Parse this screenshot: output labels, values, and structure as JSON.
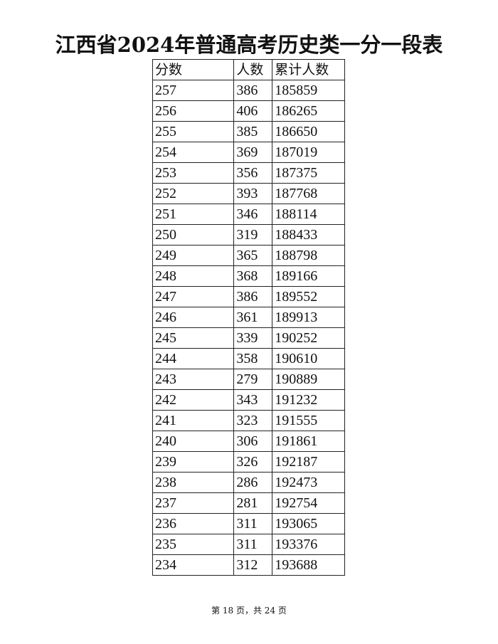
{
  "title": "江西省2024年普通高考历史类一分一段表",
  "table": {
    "headers": [
      "分数",
      "人数",
      "累计人数"
    ],
    "rows": [
      [
        "257",
        "386",
        "185859"
      ],
      [
        "256",
        "406",
        "186265"
      ],
      [
        "255",
        "385",
        "186650"
      ],
      [
        "254",
        "369",
        "187019"
      ],
      [
        "253",
        "356",
        "187375"
      ],
      [
        "252",
        "393",
        "187768"
      ],
      [
        "251",
        "346",
        "188114"
      ],
      [
        "250",
        "319",
        "188433"
      ],
      [
        "249",
        "365",
        "188798"
      ],
      [
        "248",
        "368",
        "189166"
      ],
      [
        "247",
        "386",
        "189552"
      ],
      [
        "246",
        "361",
        "189913"
      ],
      [
        "245",
        "339",
        "190252"
      ],
      [
        "244",
        "358",
        "190610"
      ],
      [
        "243",
        "279",
        "190889"
      ],
      [
        "242",
        "343",
        "191232"
      ],
      [
        "241",
        "323",
        "191555"
      ],
      [
        "240",
        "306",
        "191861"
      ],
      [
        "239",
        "326",
        "192187"
      ],
      [
        "238",
        "286",
        "192473"
      ],
      [
        "237",
        "281",
        "192754"
      ],
      [
        "236",
        "311",
        "193065"
      ],
      [
        "235",
        "311",
        "193376"
      ],
      [
        "234",
        "312",
        "193688"
      ]
    ]
  },
  "footer": "第 18 页，共 24 页"
}
